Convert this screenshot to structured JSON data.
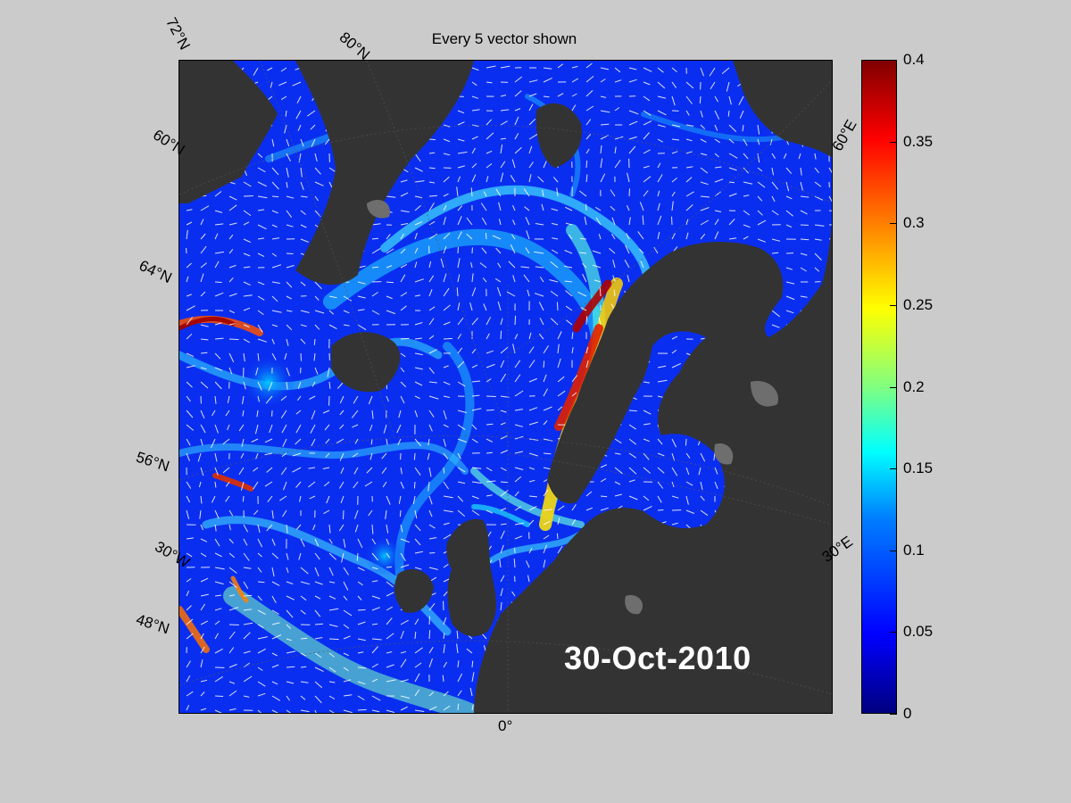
{
  "figure": {
    "title": "Every 5 vector shown",
    "date": "30-Oct-2010"
  },
  "map": {
    "latitude_labels": [
      "72°N",
      "80°N",
      "60°N",
      "64°N",
      "56°N",
      "48°N"
    ],
    "longitude_labels": [
      "30°W",
      "0°",
      "30°E",
      "60°E"
    ],
    "colors": {
      "land": "#333333",
      "land_shade": "#6e6e6e",
      "ocean_low": "#0a2ef0",
      "vector": "#ffffff"
    }
  },
  "colorbar": {
    "min": 0,
    "max": 0.4,
    "ticks": [
      "0",
      "0.05",
      "0.1",
      "0.15",
      "0.2",
      "0.25",
      "0.3",
      "0.35",
      "0.4"
    ],
    "colormap": "jet"
  }
}
